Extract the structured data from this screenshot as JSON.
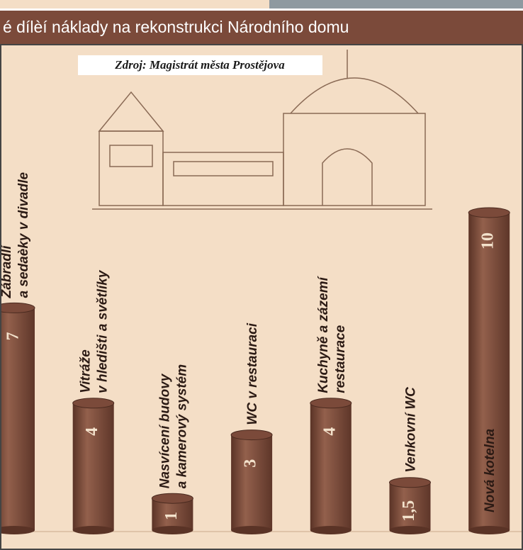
{
  "chart_data": {
    "type": "bar",
    "title": "é dílèí náklady na rekonstrukci Národního domu",
    "source": "Zdroj: Magistrát města Prostějova",
    "categories": [
      [
        "Zábradlí",
        "a sedaèky v divadle"
      ],
      [
        "Vitráže",
        "v hledišti a světlíky"
      ],
      [
        "Nasvícení budovy",
        "a kamerový systém"
      ],
      [
        "WC v restauraci"
      ],
      [
        "Kuchyně a zázemí",
        "restaurace"
      ],
      [
        "Venkovní WC"
      ],
      [
        "Nová kotelna"
      ]
    ],
    "values": [
      7,
      4,
      1,
      3,
      4,
      1.5,
      10
    ],
    "value_labels": [
      "7",
      "4",
      "1",
      "3",
      "4",
      "1,5",
      "10"
    ],
    "color": "#7b4a3a"
  }
}
